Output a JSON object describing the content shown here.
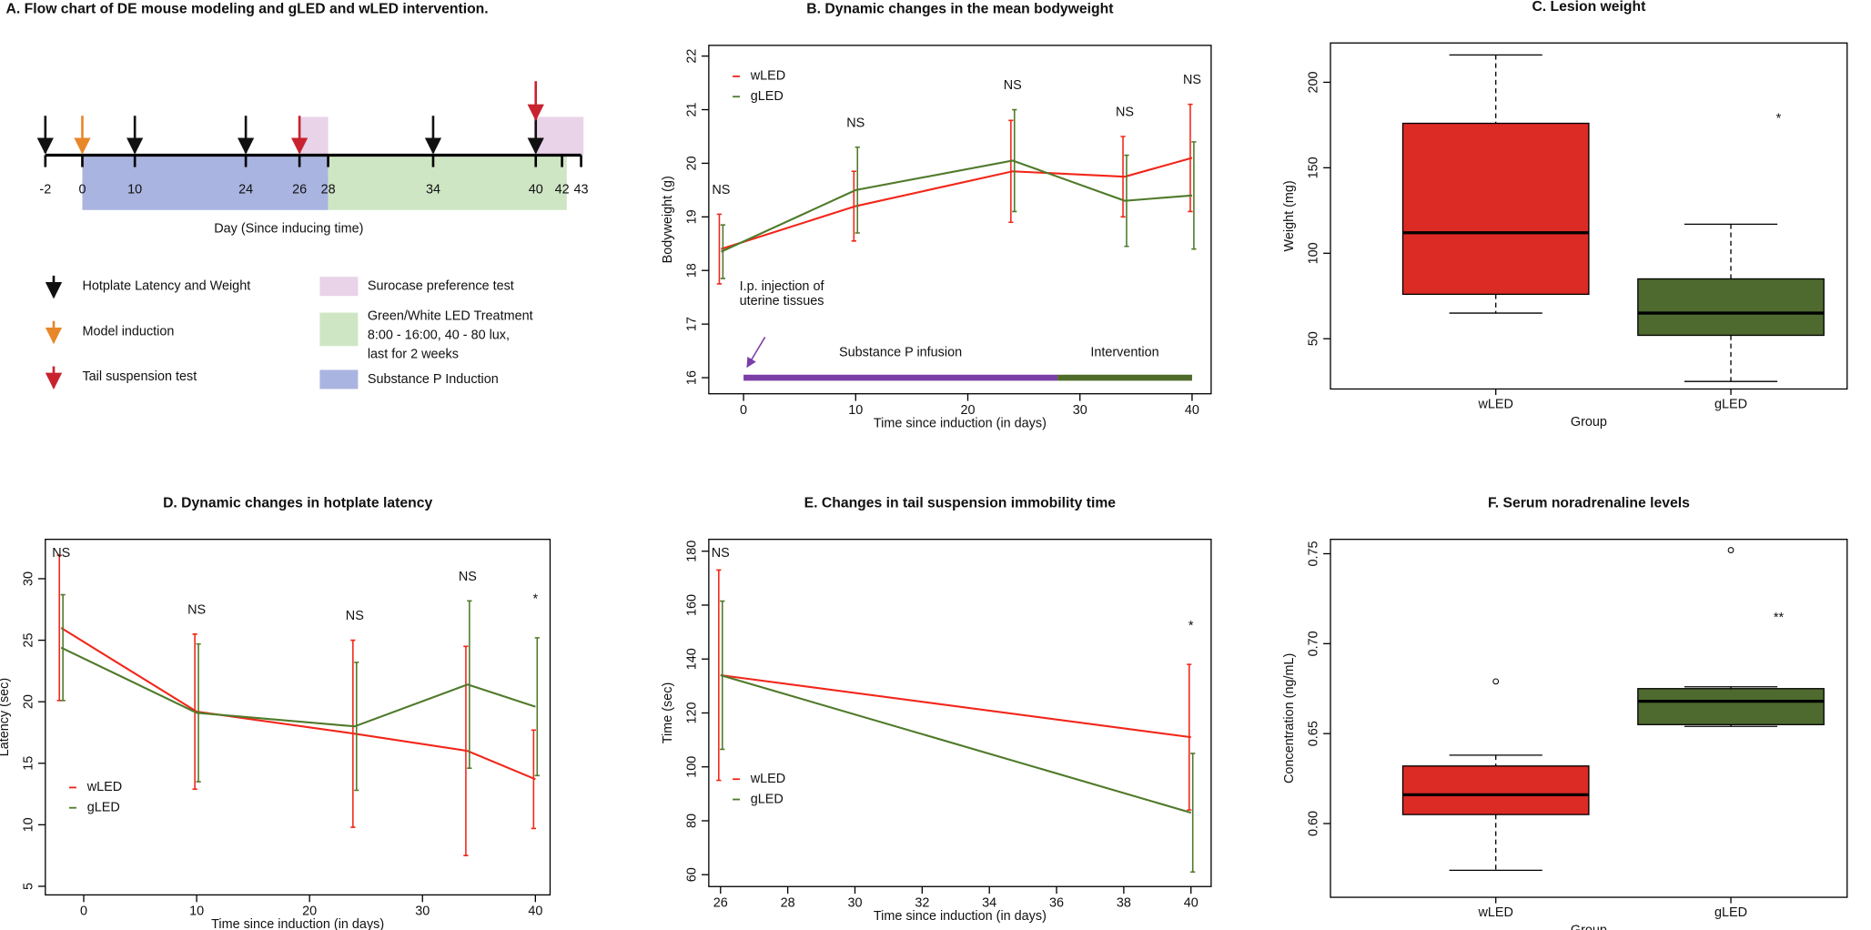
{
  "flowchart": {
    "title": "A. Flow chart of DE mouse modeling and gLED and wLED intervention.",
    "days": [
      -2,
      0,
      10,
      24,
      26,
      28,
      34,
      40,
      42,
      43
    ],
    "axis_label": "Day  (Since inducing time)",
    "legend": [
      {
        "lines": [
          "Hotplate Latency and Weight"
        ]
      },
      {
        "lines": [
          "Model induction"
        ]
      },
      {
        "lines": [
          "Tail suspension test"
        ]
      },
      {
        "lines": [
          "Surocase preference test"
        ]
      },
      {
        "lines": [
          "Green/White LED Treatment",
          "8:00 - 16:00, 40 - 80 lux,",
          "last for 2 weeks"
        ]
      },
      {
        "lines": [
          "Substance P Induction"
        ]
      }
    ]
  },
  "chart_data": [
    {
      "type": "line",
      "title": "B. Dynamic changes in the mean bodyweight",
      "x_label": "Time since induction (in days)",
      "y_label": "Bodyweight (g)",
      "x": [
        -2,
        10,
        24,
        34,
        40
      ],
      "series": [
        {
          "name": "wLED",
          "color": "#f2261a",
          "values": [
            18.4,
            19.2,
            19.85,
            19.75,
            20.1
          ],
          "errors": [
            0.65,
            0.65,
            0.95,
            0.75,
            1.0
          ]
        },
        {
          "name": "gLED",
          "color": "#4f7a2a",
          "values": [
            18.35,
            19.5,
            20.05,
            19.3,
            19.4
          ],
          "errors": [
            0.5,
            0.8,
            0.95,
            0.85,
            1.0
          ]
        }
      ],
      "annotations": [
        "NS",
        "NS",
        "NS",
        "NS",
        "NS"
      ],
      "phases": [
        {
          "label": "Substance P infusion",
          "start": 0,
          "end": 28,
          "y": 16,
          "color": "#7b3fa8"
        },
        {
          "label": "Intervention",
          "start": 28,
          "end": 40,
          "y": 16,
          "color": "#4f6b2a"
        }
      ],
      "note": {
        "lines": [
          "I.p. injection of",
          "uterine tissues"
        ],
        "x": 0,
        "color": "#7b3fa8"
      },
      "xlim": [
        -3.1,
        41.7
      ],
      "xticks": [
        0,
        10,
        20,
        30,
        40
      ],
      "ylim": [
        15.7,
        22.2
      ],
      "yticks": [
        16,
        17,
        18,
        19,
        20,
        21,
        22
      ],
      "legend": "top-left"
    },
    {
      "type": "box",
      "title": "C. Lesion weight",
      "x_label": "Group",
      "y_label": "Weight (mg)",
      "categories": [
        "wLED",
        "gLED"
      ],
      "colors": [
        "#dc2a24",
        "#4e6a2f"
      ],
      "boxes": [
        {
          "min": 65,
          "q1": 76,
          "median": 112,
          "q3": 176,
          "max": 216,
          "outliers": []
        },
        {
          "min": 25,
          "q1": 52,
          "median": 65,
          "q3": 85,
          "max": 117,
          "outliers": []
        }
      ],
      "annotation": {
        "text": "*",
        "category": 1
      },
      "ylim": [
        20.6,
        223
      ],
      "yticks": [
        50,
        100,
        150,
        200
      ]
    },
    {
      "type": "line",
      "title": "D. Dynamic changes in hotplate latency",
      "x_label": "Time since induction (in days)",
      "y_label": "Latency (sec)",
      "x": [
        -2,
        10,
        24,
        34,
        40
      ],
      "series": [
        {
          "name": "wLED",
          "color": "#f2261a",
          "values": [
            26,
            19.2,
            17.4,
            16,
            13.7
          ],
          "errors": [
            5.9,
            6.3,
            7.6,
            8.5,
            4.0
          ]
        },
        {
          "name": "gLED",
          "color": "#4f7a2a",
          "values": [
            24.4,
            19.1,
            18,
            21.4,
            19.6
          ],
          "errors": [
            4.3,
            5.6,
            5.2,
            6.8,
            5.6
          ]
        }
      ],
      "annotations": [
        "NS",
        "NS",
        "NS",
        "NS",
        "*"
      ],
      "xlim": [
        -3.4,
        41.3
      ],
      "xticks": [
        0,
        10,
        20,
        30,
        40
      ],
      "ylim": [
        4.3,
        33.2
      ],
      "yticks": [
        5,
        10,
        15,
        20,
        25,
        30
      ],
      "legend": "bottom-left"
    },
    {
      "type": "line",
      "title": "E. Changes in tail suspension immobility time",
      "x_label": "Time since induction (in days)",
      "y_label": "Time (sec)",
      "x": [
        26,
        40
      ],
      "series": [
        {
          "name": "wLED",
          "color": "#f2261a",
          "values": [
            134,
            111
          ],
          "errors": [
            39,
            27
          ]
        },
        {
          "name": "gLED",
          "color": "#4f7a2a",
          "values": [
            134,
            83
          ],
          "errors": [
            27.5,
            22
          ]
        }
      ],
      "annotations": [
        "NS",
        "*"
      ],
      "xlim": [
        25.65,
        40.6
      ],
      "xticks": [
        26,
        28,
        30,
        32,
        34,
        36,
        38,
        40
      ],
      "ylim": [
        55.6,
        184.4
      ],
      "yticks": [
        60,
        80,
        100,
        120,
        140,
        160,
        180
      ],
      "legend": "bottom-left"
    },
    {
      "type": "box",
      "title": "F. Serum noradrenaline levels",
      "x_label": "Group",
      "y_label": "Concentration (ng/mL)",
      "categories": [
        "wLED",
        "gLED"
      ],
      "colors": [
        "#dc2a24",
        "#4e6a2f"
      ],
      "boxes": [
        {
          "min": 0.574,
          "q1": 0.605,
          "median": 0.616,
          "q3": 0.632,
          "max": 0.638,
          "outliers": [
            0.679
          ]
        },
        {
          "min": 0.654,
          "q1": 0.655,
          "median": 0.668,
          "q3": 0.675,
          "max": 0.676,
          "outliers": [
            0.752
          ]
        }
      ],
      "annotation": {
        "text": "**",
        "category": 1
      },
      "ylim": [
        0.559,
        0.758
      ],
      "yticks": [
        {
          "value": 0.6,
          "label": "0.60"
        },
        0.65,
        {
          "value": 0.7,
          "label": "0.70"
        },
        0.75
      ]
    }
  ]
}
